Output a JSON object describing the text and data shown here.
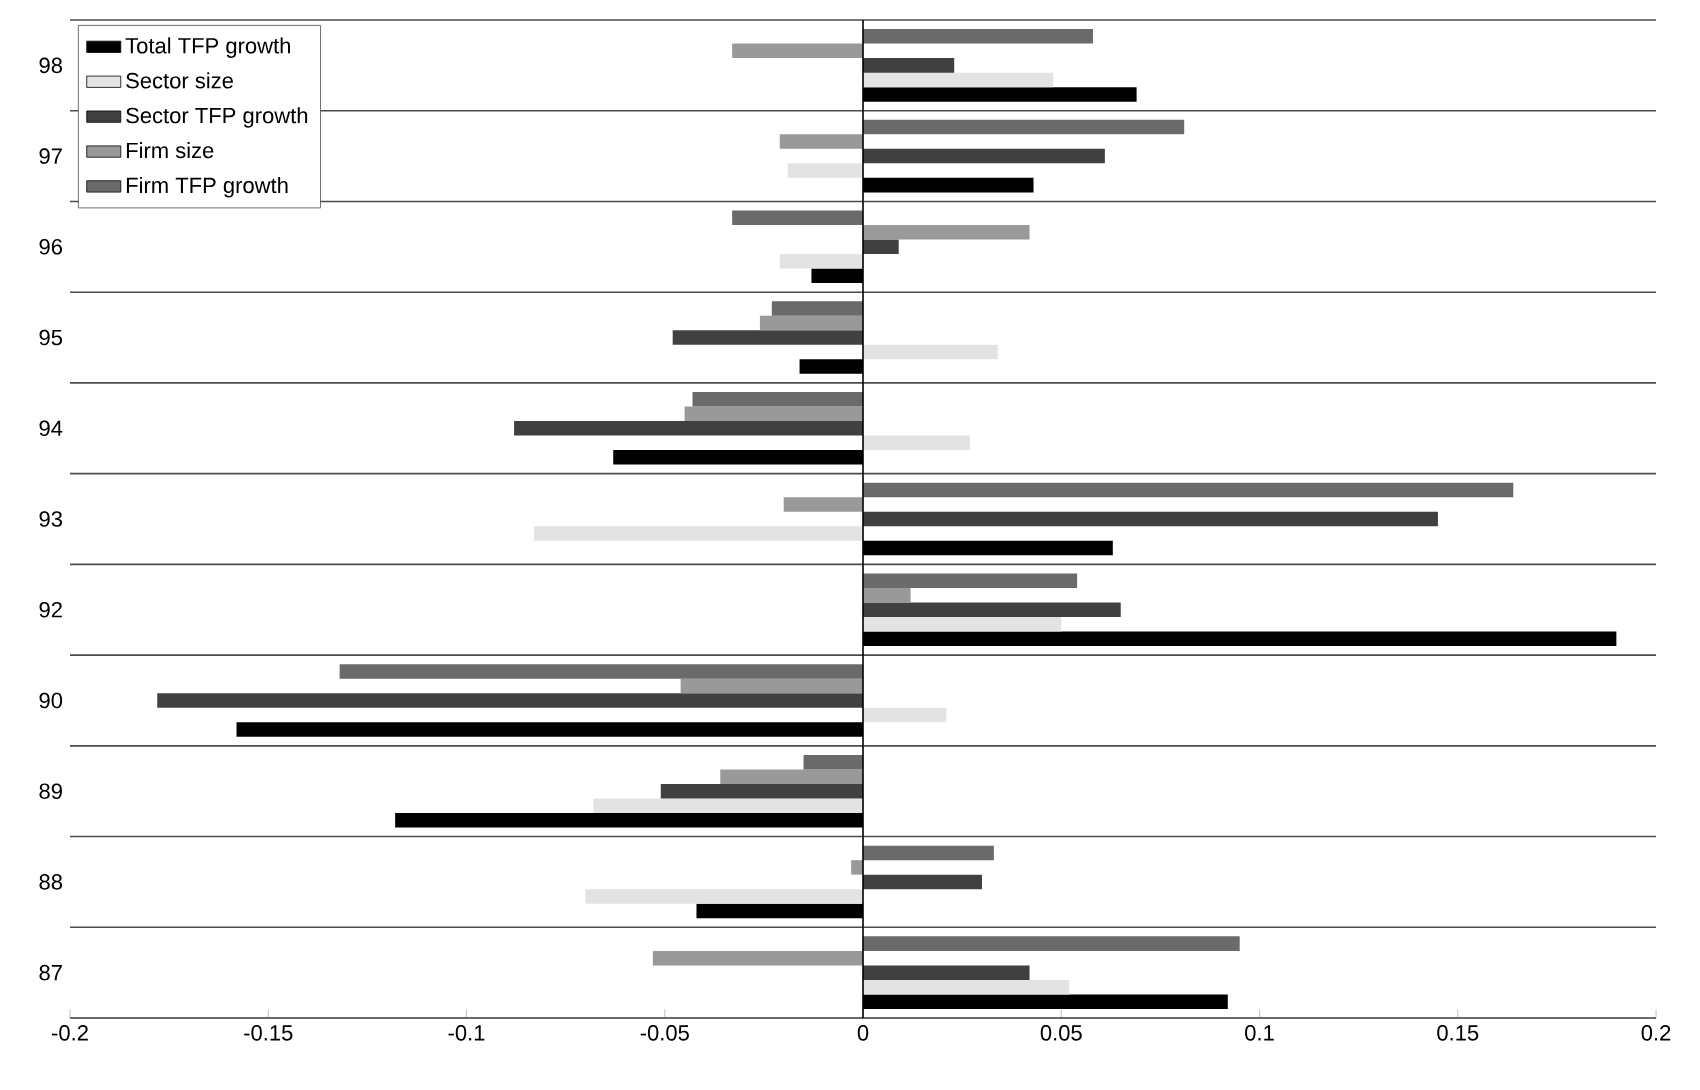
{
  "chart_data": {
    "type": "bar",
    "orientation": "horizontal",
    "categories": [
      "98",
      "97",
      "96",
      "95",
      "94",
      "93",
      "92",
      "90",
      "89",
      "88",
      "87"
    ],
    "series": [
      {
        "name": "Total TFP growth",
        "color": "#000000",
        "values": [
          0.069,
          0.043,
          -0.013,
          -0.016,
          -0.063,
          0.063,
          0.19,
          -0.158,
          -0.118,
          -0.042,
          0.092
        ]
      },
      {
        "name": "Sector size",
        "color": "#e3e3e3",
        "values": [
          0.048,
          -0.019,
          -0.021,
          0.034,
          0.027,
          -0.083,
          0.05,
          0.021,
          -0.068,
          -0.07,
          0.052
        ]
      },
      {
        "name": "Sector TFP growth",
        "color": "#404040",
        "values": [
          0.023,
          0.061,
          0.009,
          -0.048,
          -0.088,
          0.145,
          0.065,
          -0.178,
          -0.051,
          0.03,
          0.042
        ]
      },
      {
        "name": "Firm size",
        "color": "#999999",
        "values": [
          -0.033,
          -0.021,
          0.042,
          -0.026,
          -0.045,
          -0.02,
          0.012,
          -0.046,
          -0.036,
          -0.003,
          -0.053
        ]
      },
      {
        "name": "Firm TFP growth",
        "color": "#6a6a6a",
        "values": [
          0.058,
          0.081,
          -0.033,
          -0.023,
          -0.043,
          0.164,
          0.054,
          -0.132,
          -0.015,
          0.033,
          0.095
        ]
      }
    ],
    "xlim": [
      -0.2,
      0.2
    ],
    "xticks": [
      -0.2,
      -0.15,
      -0.1,
      -0.05,
      0,
      0.05,
      0.1,
      0.15,
      0.2
    ],
    "grid": "y",
    "legend": "top left"
  }
}
